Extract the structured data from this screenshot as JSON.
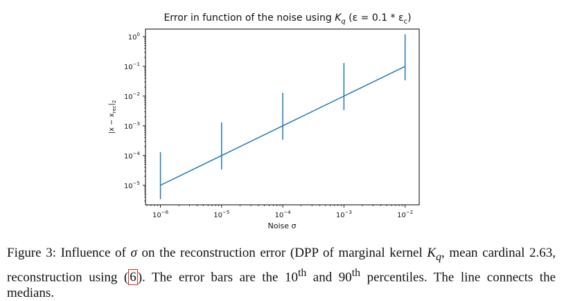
{
  "figure": {
    "chart_data": {
      "type": "line",
      "title": "Error in function of the noise using K_q (ε = 0.1 * ε_c)",
      "title_parts": {
        "prefix": "Error in function of the noise using ",
        "K": "K",
        "K_sub": "q",
        "mid": " (ε = 0.1 * ε",
        "eps_sub": "c",
        "suffix": ")"
      },
      "xlabel": "Noise σ",
      "ylabel": "|x − x_rec|₂",
      "ylabel_parts": {
        "main": "|x − x",
        "sub": "rec",
        "end": "|",
        "sub2": "2"
      },
      "x_scale": "log",
      "y_scale": "log",
      "xlim": [
        5.7e-07,
        0.017
      ],
      "ylim": [
        2.2e-06,
        1.8
      ],
      "x_ticks": [
        {
          "base": "10",
          "exp": "−6",
          "value": 1e-06
        },
        {
          "base": "10",
          "exp": "−5",
          "value": 1e-05
        },
        {
          "base": "10",
          "exp": "−4",
          "value": 0.0001
        },
        {
          "base": "10",
          "exp": "−3",
          "value": 0.001
        },
        {
          "base": "10",
          "exp": "−2",
          "value": 0.01
        }
      ],
      "y_ticks": [
        {
          "base": "10",
          "exp": "−5",
          "value": 1e-05
        },
        {
          "base": "10",
          "exp": "−4",
          "value": 0.0001
        },
        {
          "base": "10",
          "exp": "−3",
          "value": 0.001
        },
        {
          "base": "10",
          "exp": "−2",
          "value": 0.01
        },
        {
          "base": "10",
          "exp": "−1",
          "value": 0.1
        },
        {
          "base": "10",
          "exp": "0",
          "value": 1.0
        }
      ],
      "series": [
        {
          "x": [
            1e-06,
            1e-05,
            0.0001,
            0.001,
            0.01
          ],
          "median": [
            1e-05,
            0.0001,
            0.001,
            0.01,
            0.1
          ],
          "p10": [
            3.4e-06,
            3.4e-05,
            0.00034,
            0.0034,
            0.034
          ],
          "p90": [
            0.00013,
            0.0013,
            0.013,
            0.13,
            1.2
          ]
        }
      ],
      "line_color": "#1f77b4",
      "grid": false,
      "legend": "none"
    }
  },
  "caption": {
    "label": "Figure 3:",
    "t1": " Influence of ",
    "sigma": "σ",
    "t2": " on the reconstruction error (DPP of marginal kernel ",
    "K": "K",
    "K_sub": "q",
    "t3": ", mean cardinal 2.63, reconstruction using (",
    "ref": "6",
    "t4": "). The error bars are the 10",
    "sup_th1": "th",
    "t5": " and 90",
    "sup_th2": "th",
    "t6": " percentiles. The line connects the medians."
  }
}
